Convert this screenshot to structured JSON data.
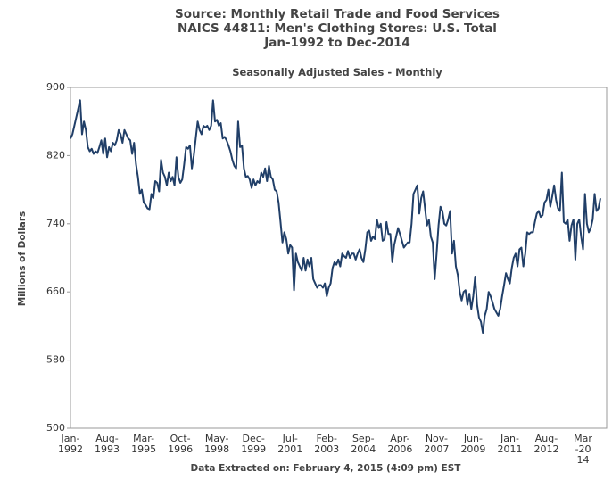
{
  "chart_data": {
    "type": "line",
    "title": [
      "Source: Monthly Retail Trade and Food Services",
      "NAICS 44811: Men's Clothing Stores: U.S. Total",
      "Jan-1992 to Dec-2014"
    ],
    "subtitle": "Seasonally Adjusted Sales - Monthly",
    "y_label": "Millions of Dollars",
    "footer": "Data Extracted on: February 4, 2015 (4:09 pm) EST",
    "color": "#213f68",
    "ylim": [
      500,
      900
    ],
    "yticks": [
      500,
      580,
      660,
      740,
      820,
      900
    ],
    "grid": false,
    "categories": [
      "Jan-1992",
      null,
      null,
      null,
      null,
      null,
      null,
      null,
      null,
      null,
      null,
      null,
      null,
      null,
      null,
      null,
      null,
      null,
      null,
      "Aug-1993",
      null,
      null,
      null,
      null,
      null,
      null,
      null,
      null,
      null,
      null,
      null,
      null,
      null,
      null,
      null,
      null,
      null,
      null,
      "Mar-1995",
      null,
      null,
      null,
      null,
      null,
      null,
      null,
      null,
      null,
      null,
      null,
      null,
      null,
      null,
      null,
      null,
      null,
      null,
      "Oct-1996",
      null,
      null,
      null,
      null,
      null,
      null,
      null,
      null,
      null,
      null,
      null,
      null,
      null,
      null,
      null,
      null,
      null,
      null,
      "May-1998",
      null,
      null,
      null,
      null,
      null,
      null,
      null,
      null,
      null,
      null,
      null,
      null,
      null,
      null,
      null,
      null,
      null,
      null,
      "Dec-1999",
      null,
      null,
      null,
      null,
      null,
      null,
      null,
      null,
      null,
      null,
      null,
      null,
      null,
      null,
      null,
      null,
      null,
      null,
      "Jul-2001",
      null,
      null,
      null,
      null,
      null,
      null,
      null,
      null,
      null,
      null,
      null,
      null,
      null,
      null,
      null,
      null,
      null,
      null,
      "Feb-2003",
      null,
      null,
      null,
      null,
      null,
      null,
      null,
      null,
      null,
      null,
      null,
      null,
      null,
      null,
      null,
      null,
      null,
      null,
      "Sep-2004",
      null,
      null,
      null,
      null,
      null,
      null,
      null,
      null,
      null,
      null,
      null,
      null,
      null,
      null,
      null,
      null,
      null,
      null,
      "Apr-2006",
      null,
      null,
      null,
      null,
      null,
      null,
      null,
      null,
      null,
      null,
      null,
      null,
      null,
      null,
      null,
      null,
      null,
      null,
      "Nov-2007",
      null,
      null,
      null,
      null,
      null,
      null,
      null,
      null,
      null,
      null,
      null,
      null,
      null,
      null,
      null,
      null,
      null,
      null,
      "Jun-2009",
      null,
      null,
      null,
      null,
      null,
      null,
      null,
      null,
      null,
      null,
      null,
      null,
      null,
      null,
      null,
      null,
      null,
      null,
      "Jan-2011",
      null,
      null,
      null,
      null,
      null,
      null,
      null,
      null,
      null,
      null,
      null,
      null,
      null,
      null,
      null,
      null,
      null,
      null,
      "Aug-2012",
      null,
      null,
      null,
      null,
      null,
      null,
      null,
      null,
      null,
      null,
      null,
      null,
      null,
      null,
      null,
      null,
      null,
      null,
      "Mar-2014",
      null,
      null,
      null,
      null,
      null,
      null,
      null,
      null,
      null
    ],
    "values": [
      840,
      845,
      855,
      865,
      875,
      885,
      845,
      860,
      850,
      830,
      825,
      828,
      822,
      825,
      823,
      830,
      838,
      822,
      840,
      818,
      830,
      825,
      835,
      832,
      838,
      850,
      845,
      835,
      850,
      845,
      840,
      838,
      822,
      835,
      810,
      795,
      775,
      780,
      765,
      762,
      758,
      757,
      775,
      770,
      790,
      788,
      778,
      815,
      800,
      795,
      785,
      800,
      790,
      795,
      785,
      818,
      795,
      788,
      792,
      810,
      830,
      828,
      832,
      805,
      820,
      840,
      860,
      850,
      845,
      855,
      853,
      855,
      850,
      855,
      885,
      860,
      862,
      855,
      858,
      840,
      842,
      838,
      832,
      825,
      815,
      808,
      805,
      860,
      830,
      832,
      805,
      795,
      796,
      792,
      782,
      792,
      785,
      790,
      788,
      800,
      795,
      805,
      790,
      808,
      795,
      792,
      780,
      778,
      765,
      742,
      718,
      730,
      722,
      705,
      715,
      712,
      662,
      705,
      695,
      690,
      685,
      700,
      685,
      698,
      690,
      700,
      675,
      670,
      665,
      668,
      668,
      665,
      670,
      655,
      665,
      670,
      688,
      695,
      692,
      698,
      690,
      705,
      702,
      700,
      708,
      700,
      705,
      705,
      698,
      705,
      710,
      700,
      695,
      710,
      730,
      732,
      720,
      725,
      722,
      745,
      735,
      740,
      720,
      722,
      742,
      728,
      728,
      695,
      715,
      725,
      735,
      728,
      720,
      712,
      715,
      718,
      718,
      740,
      775,
      780,
      785,
      752,
      770,
      778,
      758,
      738,
      745,
      725,
      718,
      675,
      705,
      738,
      760,
      755,
      740,
      738,
      745,
      755,
      705,
      720,
      690,
      680,
      660,
      650,
      660,
      662,
      645,
      658,
      640,
      655,
      678,
      645,
      630,
      625,
      612,
      632,
      640,
      660,
      655,
      648,
      640,
      636,
      632,
      640,
      655,
      668,
      682,
      675,
      670,
      688,
      700,
      705,
      690,
      710,
      712,
      690,
      705,
      730,
      728,
      730,
      730,
      742,
      752,
      755,
      748,
      750,
      765,
      768,
      780,
      760,
      772,
      785,
      768,
      758,
      755,
      800,
      742,
      740,
      745,
      720,
      738,
      745,
      698,
      740,
      745,
      725,
      710,
      775,
      740,
      730,
      735,
      745,
      775,
      755,
      758,
      770
    ]
  }
}
